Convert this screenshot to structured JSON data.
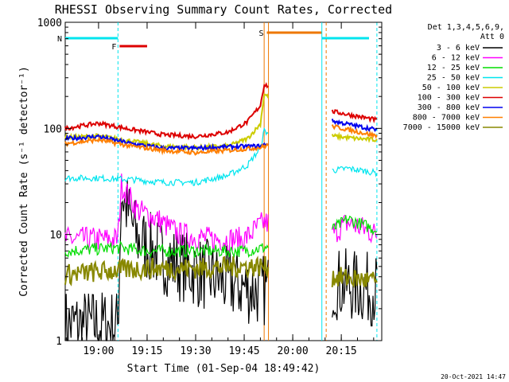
{
  "chart_data": {
    "type": "line",
    "title": "RHESSI Observing Summary Count Rates, Corrected",
    "xlabel": "Start Time (01-Sep-04 18:49:42)",
    "ylabel": "Corrected Count Rate (s⁻¹ detector⁻¹)",
    "yscale": "log",
    "ylim": [
      1,
      1000
    ],
    "xlim": [
      "18:49:42",
      "20:27:30"
    ],
    "x_ticks": [
      "19:00",
      "19:15",
      "19:30",
      "19:45",
      "20:00",
      "20:15"
    ],
    "y_ticks": [
      "1",
      "10",
      "100",
      "1000"
    ],
    "legend_header": [
      "Det 1,3,4,5,6,9,",
      "Att 0"
    ],
    "legend_position": "right",
    "timestamp": "20-Oct-2021 14:47",
    "flag_bars": [
      {
        "label": "N",
        "start": "18:49:42",
        "end": "19:06:00",
        "color": "#00e5ee"
      },
      {
        "label": "F",
        "start": "19:06:30",
        "end": "19:15:00",
        "color": "#dd0000"
      },
      {
        "label": "S",
        "start": "19:52:00",
        "end": "20:09:00",
        "color": "#ee7700"
      }
    ],
    "vertical_markers": [
      {
        "time": "19:06:00",
        "color": "#00e5ee",
        "style": "dashed"
      },
      {
        "time": "19:51:10",
        "color": "#ee7700",
        "style": "solid"
      },
      {
        "time": "19:52:30",
        "color": "#ee7700",
        "style": "solid"
      },
      {
        "time": "20:09:00",
        "color": "#00e5ee",
        "style": "solid"
      },
      {
        "time": "20:10:20",
        "color": "#ee7700",
        "style": "dashed"
      },
      {
        "time": "20:26:00",
        "color": "#00e5ee",
        "style": "dashed"
      }
    ],
    "data_gaps": [
      [
        "19:52:30",
        "20:12:00"
      ]
    ],
    "series": [
      {
        "name": "3 - 6 keV",
        "color": "#000000",
        "x": [
          "18:49:42",
          "19:06:00",
          "19:07:00",
          "19:12:00",
          "19:20:00",
          "19:30:00",
          "19:40:00",
          "19:48:00",
          "19:51:00",
          "20:12:00",
          "20:26:00"
        ],
        "y": [
          1.4,
          1.4,
          25,
          9,
          6,
          4.5,
          3.5,
          3,
          3,
          3.5,
          3
        ]
      },
      {
        "name": "6 - 12 keV",
        "color": "#ff00ff",
        "x": [
          "18:49:42",
          "19:06:00",
          "19:07:00",
          "19:12:00",
          "19:18:00",
          "19:25:00",
          "19:35:00",
          "19:45:00",
          "19:51:00",
          "20:12:00",
          "20:17:00",
          "20:26:00"
        ],
        "y": [
          9,
          9,
          30,
          17,
          14,
          10,
          9,
          9,
          13,
          10,
          13,
          10
        ]
      },
      {
        "name": "12 - 25 keV",
        "color": "#00dd00",
        "x": [
          "18:49:42",
          "19:06:00",
          "19:15:00",
          "19:30:00",
          "19:45:00",
          "19:51:00",
          "20:12:00",
          "20:17:00",
          "20:26:00"
        ],
        "y": [
          7,
          7.5,
          7,
          7,
          7,
          7.5,
          11,
          14,
          11
        ]
      },
      {
        "name": "25 - 50 keV",
        "color": "#00e5ee",
        "x": [
          "18:49:42",
          "19:00:00",
          "19:10:00",
          "19:20:00",
          "19:30:00",
          "19:40:00",
          "19:46:00",
          "19:50:00",
          "19:51:10",
          "20:12:00",
          "20:17:00",
          "20:26:00"
        ],
        "y": [
          34,
          34,
          33,
          31,
          31,
          36,
          45,
          65,
          95,
          40,
          42,
          38
        ]
      },
      {
        "name": "50 - 100 keV",
        "color": "#cccc00",
        "x": [
          "18:49:42",
          "19:00:00",
          "19:10:00",
          "19:20:00",
          "19:30:00",
          "19:40:00",
          "19:46:00",
          "19:50:00",
          "19:51:10",
          "20:12:00",
          "20:20:00",
          "20:26:00"
        ],
        "y": [
          82,
          85,
          76,
          68,
          66,
          68,
          80,
          110,
          210,
          85,
          80,
          78
        ]
      },
      {
        "name": "100 - 300 keV",
        "color": "#dd0000",
        "x": [
          "18:49:42",
          "19:00:00",
          "19:10:00",
          "19:20:00",
          "19:30:00",
          "19:40:00",
          "19:46:00",
          "19:50:00",
          "19:51:10",
          "20:12:00",
          "20:20:00",
          "20:26:00"
        ],
        "y": [
          100,
          112,
          98,
          87,
          84,
          92,
          115,
          165,
          260,
          145,
          130,
          120
        ]
      },
      {
        "name": "300 - 800 keV",
        "color": "#0000ee",
        "x": [
          "18:49:42",
          "19:00:00",
          "19:10:00",
          "19:20:00",
          "19:30:00",
          "19:40:00",
          "19:50:00",
          "19:51:10",
          "20:12:00",
          "20:20:00",
          "20:26:00"
        ],
        "y": [
          80,
          84,
          72,
          65,
          65,
          67,
          68,
          70,
          118,
          105,
          97
        ]
      },
      {
        "name": "800 - 7000 keV",
        "color": "#ff7f00",
        "x": [
          "18:49:42",
          "19:00:00",
          "19:10:00",
          "19:20:00",
          "19:30:00",
          "19:40:00",
          "19:50:00",
          "19:51:10",
          "20:12:00",
          "20:20:00",
          "20:26:00"
        ],
        "y": [
          72,
          78,
          68,
          62,
          59,
          62,
          66,
          68,
          105,
          93,
          85
        ]
      },
      {
        "name": "7000 - 15000 keV",
        "color": "#888800",
        "x": [
          "18:49:42",
          "19:06:00",
          "19:15:00",
          "19:30:00",
          "19:45:00",
          "19:51:00",
          "20:12:00",
          "20:20:00",
          "20:26:00"
        ],
        "y": [
          4.2,
          4.6,
          4.8,
          4.8,
          5,
          5,
          4,
          3.8,
          3.6
        ]
      }
    ]
  }
}
